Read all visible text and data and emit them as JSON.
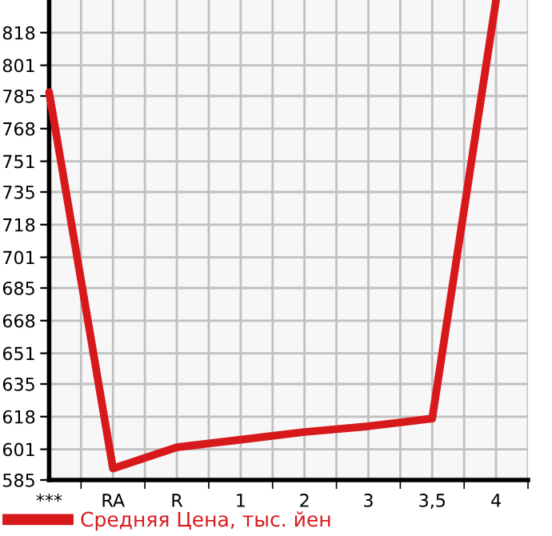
{
  "chart_data": {
    "type": "line",
    "categories": [
      "***",
      "RA",
      "R",
      "1",
      "2",
      "3",
      "3,5",
      "4"
    ],
    "series": [
      {
        "name": "Средняя Цена, тыс. йен",
        "color": "#d7191c",
        "values": [
          787,
          591,
          602,
          606,
          610,
          613,
          617,
          835
        ]
      }
    ],
    "ylim": [
      585,
      835
    ],
    "yticks": [
      585,
      601,
      618,
      635,
      651,
      668,
      685,
      701,
      718,
      735,
      751,
      768,
      785,
      801,
      818
    ],
    "grid": true,
    "legend": "bottom",
    "marker": "none",
    "line_style": "solid"
  }
}
